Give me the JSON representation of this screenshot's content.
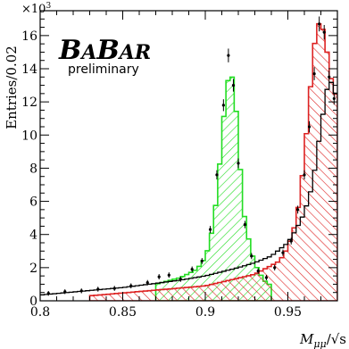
{
  "chart_data": {
    "type": "histogram",
    "xlabel": "M_{μμ}/√s",
    "xlabel_main": "M",
    "xlabel_sub": "μμ",
    "xlabel_tail": "/√s",
    "ylabel": "Entries/0.02",
    "y_multiplier": "×10³",
    "y_multiplier_base": "×10",
    "y_multiplier_exp": "3",
    "xlim": [
      0.8,
      0.98
    ],
    "ylim": [
      0,
      17.5
    ],
    "x_ticks": [
      0.8,
      0.85,
      0.9,
      0.95
    ],
    "x_tick_labels": [
      "0.8",
      "0.85",
      "0.9",
      "0.95"
    ],
    "y_ticks": [
      0,
      2,
      4,
      6,
      8,
      10,
      12,
      14,
      16
    ],
    "y_tick_labels": [
      "0",
      "2",
      "4",
      "6",
      "8",
      "10",
      "12",
      "14",
      "16"
    ],
    "logo_text": "BABAR",
    "logo_parts": [
      "B",
      "A",
      "B",
      "AR"
    ],
    "annotation": "preliminary",
    "series": [
      {
        "name": "",
        "kind": "black-total-histogram",
        "color": "#000000",
        "x": [
          0.8,
          0.85,
          0.87,
          0.885,
          0.9,
          0.91,
          0.92,
          0.93,
          0.94,
          0.95,
          0.955,
          0.96,
          0.965,
          0.97,
          0.975,
          0.98
        ],
        "y": [
          0.35,
          0.8,
          1.05,
          1.25,
          1.5,
          1.75,
          2.0,
          2.3,
          2.7,
          3.5,
          4.3,
          5.3,
          7.0,
          10.5,
          13.5,
          12.2
        ]
      },
      {
        "name": "",
        "kind": "green-hatched-peak",
        "color": "#22dd22",
        "x": [
          0.87,
          0.885,
          0.895,
          0.9,
          0.903,
          0.906,
          0.909,
          0.912,
          0.915,
          0.918,
          0.921,
          0.924,
          0.928,
          0.932,
          0.936,
          0.94
        ],
        "y": [
          1.0,
          1.4,
          1.9,
          2.6,
          3.6,
          5.5,
          8.5,
          12.0,
          14.2,
          12.5,
          8.2,
          4.8,
          2.9,
          1.8,
          1.2,
          0.9
        ]
      },
      {
        "name": "",
        "kind": "red-hatched-peak",
        "color": "#dd2222",
        "x": [
          0.83,
          0.9,
          0.93,
          0.945,
          0.95,
          0.955,
          0.958,
          0.961,
          0.964,
          0.967,
          0.97,
          0.973,
          0.976,
          0.98
        ],
        "y": [
          0.3,
          0.9,
          1.6,
          2.4,
          3.2,
          4.8,
          6.8,
          9.8,
          13.2,
          16.3,
          17.0,
          15.5,
          13.5,
          12.0
        ]
      },
      {
        "name": "",
        "kind": "data-points",
        "color": "#000000",
        "x": [
          0.805,
          0.815,
          0.825,
          0.835,
          0.845,
          0.855,
          0.865,
          0.872,
          0.878,
          0.885,
          0.892,
          0.898,
          0.903,
          0.907,
          0.911,
          0.914,
          0.917,
          0.92,
          0.924,
          0.928,
          0.932,
          0.937,
          0.942,
          0.947,
          0.952,
          0.956,
          0.96,
          0.963,
          0.966,
          0.969,
          0.972,
          0.975,
          0.978
        ],
        "y": [
          0.45,
          0.55,
          0.6,
          0.7,
          0.75,
          0.9,
          1.1,
          1.45,
          1.55,
          1.3,
          1.9,
          2.4,
          4.3,
          7.6,
          11.8,
          14.8,
          13.0,
          8.3,
          4.6,
          2.7,
          1.8,
          1.4,
          2.0,
          2.9,
          3.6,
          5.5,
          7.6,
          10.5,
          13.7,
          16.7,
          16.2,
          13.5,
          12.2
        ]
      }
    ]
  }
}
